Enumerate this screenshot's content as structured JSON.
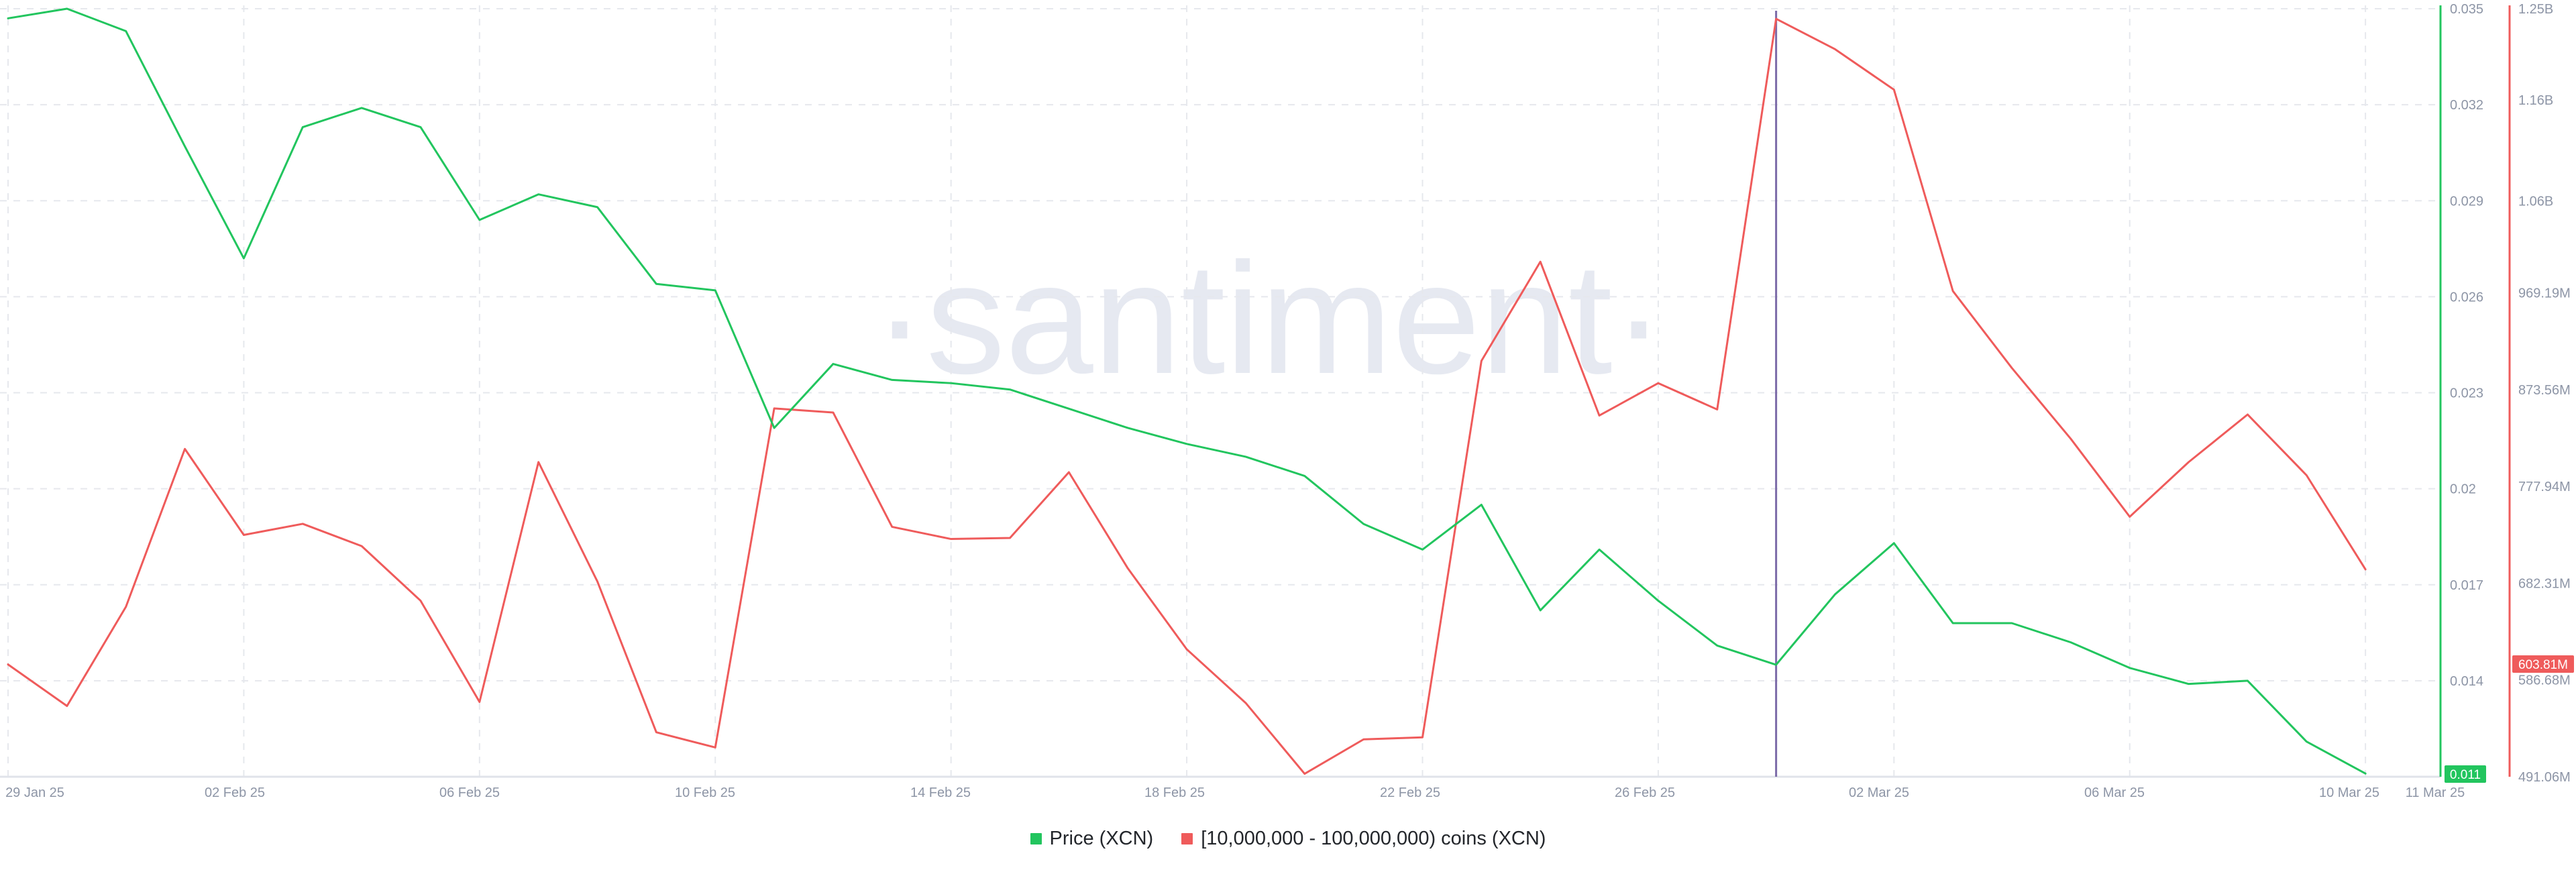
{
  "colors": {
    "price_series": "#22c55e",
    "holder_series": "#ef5b5b",
    "marker_line": "#7c6ba8",
    "grid": "#e6e8ed",
    "axis_text": "#8d95a6",
    "watermark": "#e6e9f1"
  },
  "watermark": {
    "text": "·santiment·"
  },
  "legend": {
    "price_label": "Price (XCN)",
    "holder_label": "[10,000,000 - 100,000,000) coins (XCN)"
  },
  "axes": {
    "x_ticks": [
      "29 Jan 25",
      "02 Feb 25",
      "06 Feb 25",
      "10 Feb 25",
      "14 Feb 25",
      "18 Feb 25",
      "22 Feb 25",
      "26 Feb 25",
      "02 Mar 25",
      "06 Mar 25",
      "10 Mar 25",
      "11 Mar 25"
    ],
    "price_ticks": [
      "0.035",
      "0.032",
      "0.029",
      "0.026",
      "0.023",
      "0.02",
      "0.017",
      "0.014"
    ],
    "holder_ticks": [
      "1.25B",
      "1.16B",
      "1.06B",
      "969.19M",
      "873.56M",
      "777.94M",
      "682.31M",
      "586.68M",
      "491.06M"
    ],
    "price_badge": "0.011",
    "holder_badge": "603.81M"
  },
  "chart_data": {
    "type": "line",
    "title": "",
    "x": [
      "2025-01-29",
      "2025-01-30",
      "2025-01-31",
      "2025-02-01",
      "2025-02-02",
      "2025-02-03",
      "2025-02-04",
      "2025-02-05",
      "2025-02-06",
      "2025-02-07",
      "2025-02-08",
      "2025-02-09",
      "2025-02-10",
      "2025-02-11",
      "2025-02-12",
      "2025-02-13",
      "2025-02-14",
      "2025-02-15",
      "2025-02-16",
      "2025-02-17",
      "2025-02-18",
      "2025-02-19",
      "2025-02-20",
      "2025-02-21",
      "2025-02-22",
      "2025-02-23",
      "2025-02-24",
      "2025-02-25",
      "2025-02-26",
      "2025-02-27",
      "2025-02-28",
      "2025-03-01",
      "2025-03-02",
      "2025-03-03",
      "2025-03-04",
      "2025-03-05",
      "2025-03-06",
      "2025-03-07",
      "2025-03-08",
      "2025-03-09",
      "2025-03-10",
      "2025-03-11"
    ],
    "x_ticks": [
      "29 Jan 25",
      "02 Feb 25",
      "06 Feb 25",
      "10 Feb 25",
      "14 Feb 25",
      "18 Feb 25",
      "22 Feb 25",
      "26 Feb 25",
      "02 Mar 25",
      "06 Mar 25",
      "10 Mar 25",
      "11 Mar 25"
    ],
    "series": [
      {
        "name": "Price (XCN)",
        "axis": "left",
        "color": "#22c55e",
        "values": [
          0.0347,
          0.035,
          0.0343,
          0.0307,
          0.0272,
          0.0313,
          0.0319,
          0.0313,
          0.0284,
          0.0292,
          0.0288,
          0.0264,
          0.0262,
          0.0219,
          0.0239,
          0.0234,
          0.0233,
          0.0231,
          0.0225,
          0.0219,
          0.0214,
          0.021,
          0.0204,
          0.0189,
          0.0181,
          0.0195,
          0.0162,
          0.0181,
          0.0165,
          0.0151,
          0.0145,
          0.0167,
          0.0183,
          0.0158,
          0.0158,
          0.0152,
          0.0144,
          0.0139,
          0.014,
          0.0121,
          0.0111,
          0.0111
        ]
      },
      {
        "name": "[10,000,000 - 100,000,000) coins (XCN)",
        "axis": "right",
        "color": "#ef5b5b",
        "values": [
          602000000,
          561000000,
          659000000,
          815000000,
          730000000,
          741000000,
          719000000,
          665000000,
          565000000,
          802000000,
          684000000,
          535000000,
          520000000,
          855000000,
          851000000,
          738000000,
          726000000,
          727000000,
          792000000,
          697000000,
          617000000,
          564000000,
          494000000,
          528000000,
          530000000,
          902000000,
          1000000000,
          848000000,
          880000000,
          854000000,
          1240000000,
          1210000000,
          1170000000,
          971000000,
          895000000,
          825000000,
          748000000,
          802000000,
          849000000,
          789000000,
          696000000,
          603810000
        ]
      }
    ],
    "marker_date": "2025-02-28",
    "y_left": {
      "min": 0.011,
      "max": 0.035,
      "ticks": [
        0.035,
        0.032,
        0.029,
        0.026,
        0.023,
        0.02,
        0.017,
        0.014
      ]
    },
    "y_right": {
      "min": 491060000,
      "max": 1250000000,
      "ticks": [
        "1.25B",
        "1.16B",
        "1.06B",
        "969.19M",
        "873.56M",
        "777.94M",
        "682.31M",
        "586.68M",
        "491.06M"
      ]
    },
    "grid": true,
    "legend_position": "bottom-center"
  }
}
